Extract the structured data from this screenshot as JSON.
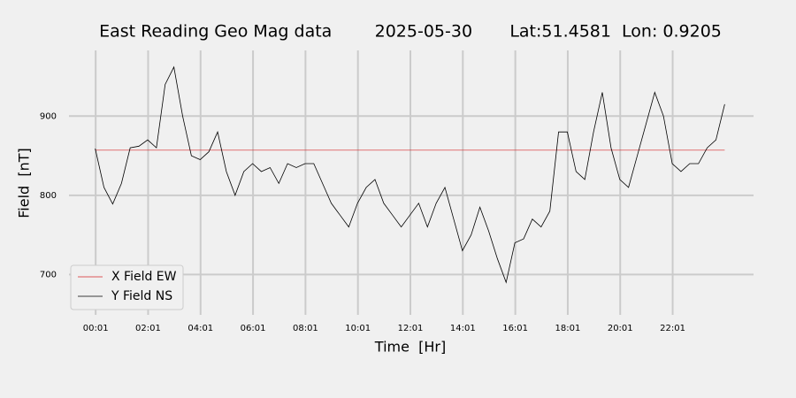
{
  "chart_data": {
    "type": "line",
    "title": "East Reading Geo Mag data        2025-05-30       Lat:51.4581  Lon: 0.9205",
    "x_label": "Time  [Hr]",
    "y_label": "Field  [nT]",
    "x": [
      0,
      20,
      40,
      60,
      80,
      100,
      120,
      140,
      160,
      180,
      200,
      220,
      240,
      260,
      280,
      300,
      320,
      340,
      360,
      380,
      400,
      420,
      440,
      460,
      480,
      500,
      520,
      540,
      560,
      580,
      600,
      620,
      640,
      660,
      680,
      700,
      720,
      740,
      760,
      780,
      800,
      820,
      840,
      860,
      880,
      900,
      920,
      940,
      960,
      980,
      1000,
      1020,
      1040,
      1060,
      1080,
      1100,
      1120,
      1140,
      1160,
      1180,
      1200,
      1220,
      1240,
      1260,
      1280,
      1300,
      1320,
      1340,
      1360,
      1380,
      1400,
      1420,
      1440
    ],
    "series": [
      {
        "name": "X Field EW",
        "color": "#d62728",
        "width": 0.7,
        "values": [
          857,
          857,
          857,
          857,
          857,
          857,
          857,
          857,
          857,
          857,
          857,
          857,
          857,
          857,
          857,
          857,
          857,
          857,
          857,
          857,
          857,
          857,
          857,
          857,
          857,
          857,
          857,
          857,
          857,
          857,
          857,
          857,
          857,
          857,
          857,
          857,
          857,
          857,
          857,
          857,
          857,
          857,
          857,
          857,
          857,
          857,
          857,
          857,
          857,
          857,
          857,
          857,
          857,
          857,
          857,
          857,
          857,
          857,
          857,
          857,
          857,
          857,
          857,
          857,
          857,
          857,
          857,
          857,
          857,
          857,
          857,
          857,
          857
        ]
      },
      {
        "name": "Y Field NS",
        "color": "#000000",
        "width": 0.8,
        "values": [
          859,
          810,
          789,
          815,
          860,
          862,
          870,
          860,
          940,
          962,
          900,
          850,
          845,
          855,
          880,
          830,
          800,
          830,
          840,
          830,
          835,
          815,
          840,
          835,
          840,
          840,
          815,
          790,
          775,
          760,
          790,
          810,
          820,
          790,
          775,
          760,
          775,
          790,
          760,
          790,
          810,
          770,
          730,
          750,
          785,
          755,
          720,
          690,
          740,
          745,
          770,
          760,
          780,
          880,
          880,
          830,
          820,
          880,
          930,
          860,
          820,
          810,
          850,
          890,
          930,
          900,
          840,
          830,
          840,
          840,
          860,
          870,
          915
        ]
      }
    ],
    "xlim": [
      -60,
      1506
    ],
    "ylim": [
      649,
      983
    ],
    "xticks": [
      {
        "value": 1,
        "label": "00:01"
      },
      {
        "value": 121,
        "label": "02:01"
      },
      {
        "value": 241,
        "label": "04:01"
      },
      {
        "value": 361,
        "label": "06:01"
      },
      {
        "value": 481,
        "label": "08:01"
      },
      {
        "value": 601,
        "label": "10:01"
      },
      {
        "value": 721,
        "label": "12:01"
      },
      {
        "value": 841,
        "label": "14:01"
      },
      {
        "value": 961,
        "label": "16:01"
      },
      {
        "value": 1081,
        "label": "18:01"
      },
      {
        "value": 1201,
        "label": "20:01"
      },
      {
        "value": 1321,
        "label": "22:01"
      }
    ],
    "yticks": [
      700,
      800,
      900
    ],
    "grid": true,
    "legend": "lower left"
  }
}
